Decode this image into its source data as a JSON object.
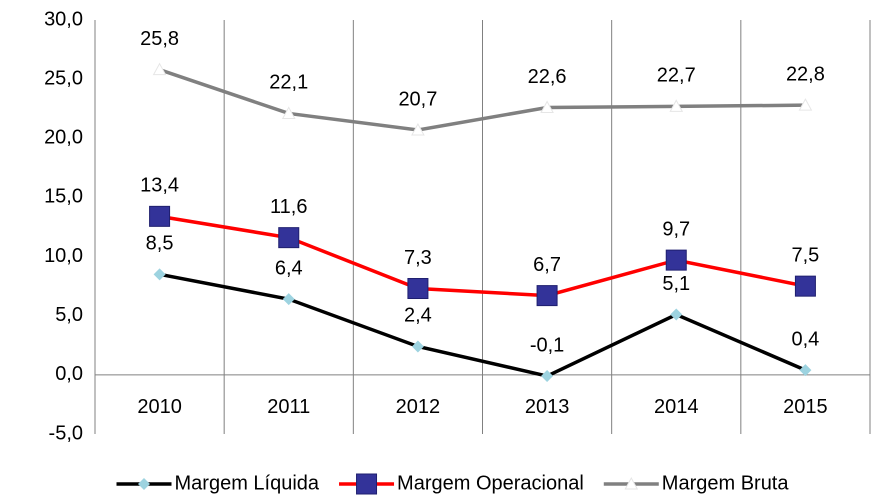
{
  "chart_data": {
    "type": "line",
    "categories": [
      "2010",
      "2011",
      "2012",
      "2013",
      "2014",
      "2015"
    ],
    "series": [
      {
        "name": "Margem Líquida",
        "color": "#000000",
        "marker": "diamond",
        "marker_color": "#9dd3e0",
        "values": [
          8.5,
          6.4,
          2.4,
          -0.1,
          5.1,
          0.4
        ],
        "value_labels": [
          "8,5",
          "6,4",
          "2,4",
          "-0,1",
          "5,1",
          "0,4"
        ]
      },
      {
        "name": "Margem Operacional",
        "color": "#ff0000",
        "marker": "square",
        "marker_color": "#333399",
        "values": [
          13.4,
          11.6,
          7.3,
          6.7,
          9.7,
          7.5
        ],
        "value_labels": [
          "13,4",
          "11,6",
          "7,3",
          "6,7",
          "9,7",
          "7,5"
        ]
      },
      {
        "name": "Margem Bruta",
        "color": "#808080",
        "marker": "triangle",
        "marker_color": "#ffffff",
        "values": [
          25.8,
          22.1,
          20.7,
          22.6,
          22.7,
          22.8
        ],
        "value_labels": [
          "25,8",
          "22,1",
          "20,7",
          "22,6",
          "22,7",
          "22,8"
        ]
      }
    ],
    "ylim": [
      -5,
      30
    ],
    "yticks": [
      {
        "value": -5,
        "label": "-5,0"
      },
      {
        "value": 0,
        "label": "0,0"
      },
      {
        "value": 5,
        "label": "5,0"
      },
      {
        "value": 10,
        "label": "10,0"
      },
      {
        "value": 15,
        "label": "15,0"
      },
      {
        "value": 20,
        "label": "20,0"
      },
      {
        "value": 25,
        "label": "25,0"
      },
      {
        "value": 30,
        "label": "30,0"
      }
    ],
    "grid": false,
    "legend": "bottom"
  }
}
